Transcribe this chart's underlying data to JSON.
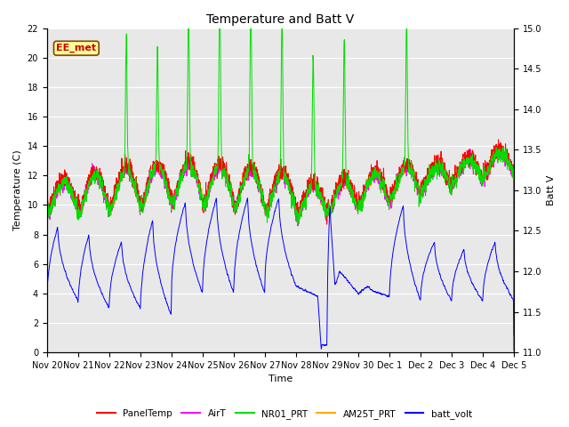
{
  "title": "Temperature and Batt V",
  "xlabel": "Time",
  "ylabel_left": "Temperature (C)",
  "ylabel_right": "Batt V",
  "ylim_left": [
    0,
    22
  ],
  "ylim_right": [
    11.0,
    15.0
  ],
  "yticks_left": [
    0,
    2,
    4,
    6,
    8,
    10,
    12,
    14,
    16,
    18,
    20,
    22
  ],
  "yticks_right": [
    11.0,
    11.5,
    12.0,
    12.5,
    13.0,
    13.5,
    14.0,
    14.5,
    15.0
  ],
  "xtick_labels": [
    "Nov 20",
    "Nov 21",
    "Nov 22",
    "Nov 23",
    "Nov 24",
    "Nov 25",
    "Nov 26",
    "Nov 27",
    "Nov 28",
    "Nov 29",
    "Nov 30",
    "Dec 1",
    "Dec 2",
    "Dec 3",
    "Dec 4",
    "Dec 5"
  ],
  "annotation_text": "EE_met",
  "annotation_color": "#cc0000",
  "annotation_bg": "#ffff99",
  "legend_entries": [
    {
      "label": "PanelTemp",
      "color": "#ff0000"
    },
    {
      "label": "AirT",
      "color": "#ff00ff"
    },
    {
      "label": "NR01_PRT",
      "color": "#00dd00"
    },
    {
      "label": "AM25T_PRT",
      "color": "#ffaa00"
    },
    {
      "label": "batt_volt",
      "color": "#0000ff"
    }
  ],
  "background_color": "#e8e8e8",
  "grid_color": "#ffffff",
  "figsize": [
    6.4,
    4.8
  ],
  "dpi": 100
}
